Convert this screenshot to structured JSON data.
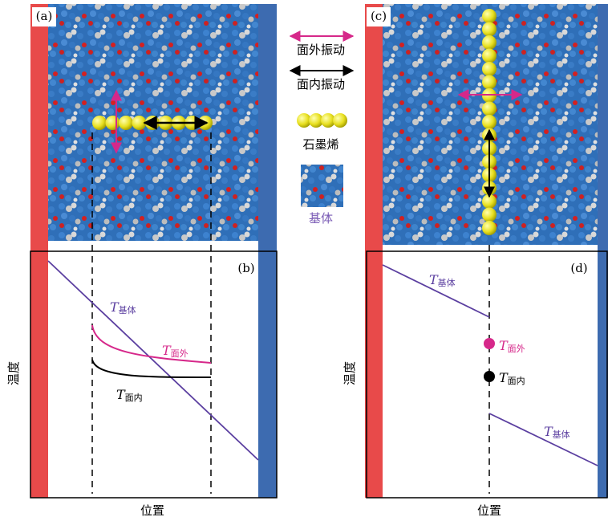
{
  "panels": {
    "a": "(a)",
    "b": "(b)",
    "c": "(c)",
    "d": "(d)"
  },
  "legend": {
    "out_of_plane": "面外振动",
    "in_plane": "面内振动",
    "graphene": "石墨烯",
    "substrate": "基体"
  },
  "plot_b": {
    "y_label": "温度",
    "x_label": "位置",
    "labels": [
      {
        "symbol": "T",
        "subscript": "基体"
      },
      {
        "symbol": "T",
        "subscript": "面外"
      },
      {
        "symbol": "T",
        "subscript": "面内"
      }
    ]
  },
  "plot_d": {
    "y_label": "温度",
    "x_label": "位置",
    "labels": [
      {
        "symbol": "T",
        "subscript": "基体"
      },
      {
        "symbol": "T",
        "subscript": "面外"
      },
      {
        "symbol": "T",
        "subscript": "面内"
      },
      {
        "symbol": "T",
        "subscript": "基体"
      }
    ]
  }
}
